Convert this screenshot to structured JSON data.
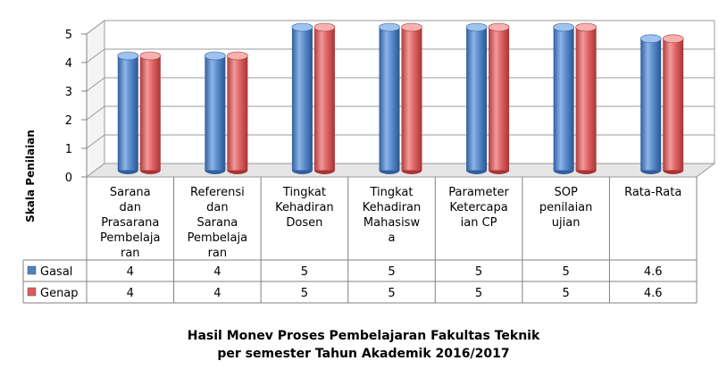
{
  "chart_data": {
    "type": "bar",
    "title_lines": [
      "Hasil Monev Proses Pembelajaran Fakultas Teknik",
      "per semester Tahun Akademik 2016/2017"
    ],
    "ylabel": "Skala Penilaian",
    "xlabel": "",
    "ylim": [
      0,
      5
    ],
    "yticks": [
      "0",
      "1",
      "2",
      "3",
      "4",
      "5"
    ],
    "categories": [
      [
        "Sarana",
        "dan",
        "Prasarana",
        "Pembelaja",
        "ran"
      ],
      [
        "Referensi",
        "dan",
        "Sarana",
        "Pembelaja",
        "ran"
      ],
      [
        "Tingkat",
        "Kehadiran",
        "Dosen"
      ],
      [
        "Tingkat",
        "Kehadiran",
        "Mahasisw",
        "a"
      ],
      [
        "Parameter",
        "Ketercapa",
        "ian CP"
      ],
      [
        "SOP",
        "penilaian",
        "ujian"
      ],
      [
        "Rata-Rata"
      ]
    ],
    "series": [
      {
        "name": "Gasal",
        "values": [
          4,
          4,
          5,
          5,
          5,
          5,
          4.6
        ],
        "labels": [
          "4",
          "4",
          "5",
          "5",
          "5",
          "5",
          "4.6"
        ],
        "color": "#4f81bd"
      },
      {
        "name": "Genap",
        "values": [
          4,
          4,
          5,
          5,
          5,
          5,
          4.6
        ],
        "labels": [
          "4",
          "4",
          "5",
          "5",
          "5",
          "5",
          "4.6"
        ],
        "color": "#e05a5a"
      }
    ],
    "grid": true,
    "legend": "data-table"
  }
}
